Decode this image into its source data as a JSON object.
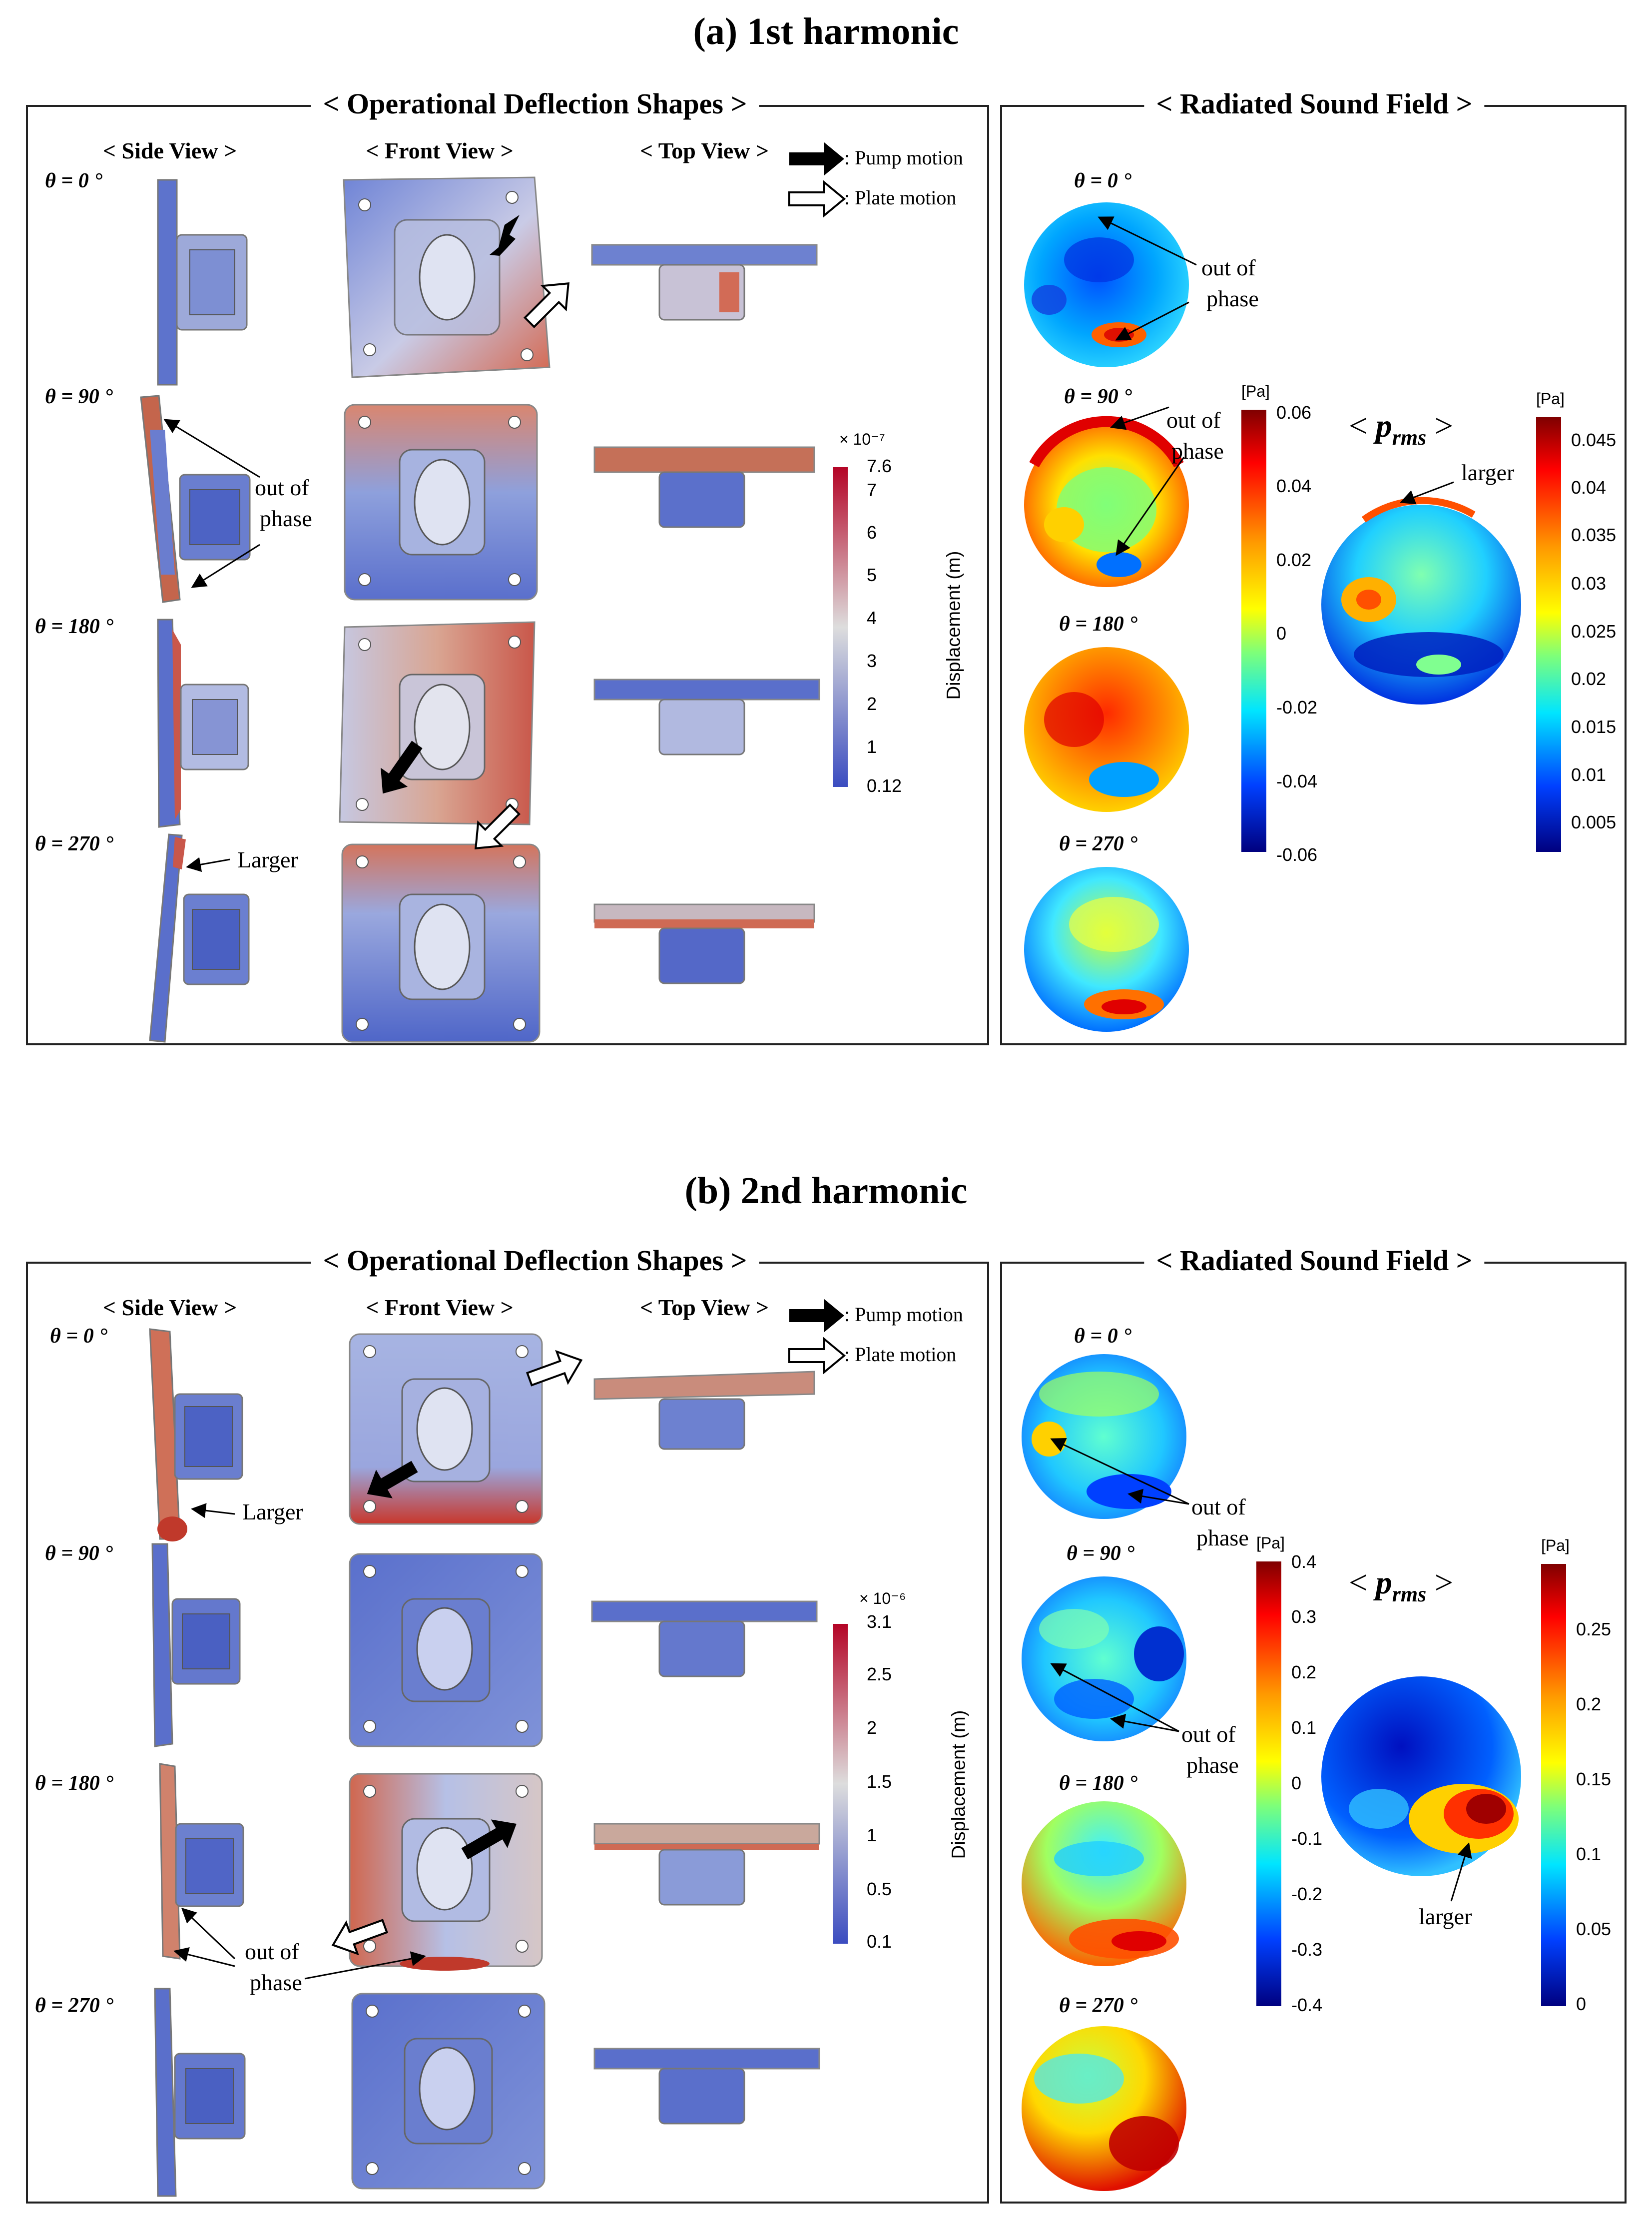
{
  "colors": {
    "jet_dark_blue": "#00007f",
    "jet_blue": "#0050ff",
    "jet_cyan": "#00e5ff",
    "jet_green": "#7dff7a",
    "jet_yellow": "#ffea00",
    "jet_orange": "#ff6a00",
    "jet_red": "#c00000",
    "disp_blue": "#3b4cc0",
    "disp_white": "#dddddd",
    "disp_red": "#b40426"
  },
  "legend": {
    "pump_motion": ": Pump motion",
    "plate_motion": ": Plate motion"
  },
  "sections": [
    {
      "title": "(a) 1st harmonic",
      "ods_title": "< Operational Deflection Shapes >",
      "sound_title": "< Radiated Sound Field >",
      "side_view": "< Side View >",
      "front_view": "< Front View >",
      "top_view": "< Top View >",
      "angles": [
        "θ = 0 °",
        "θ = 90 °",
        "θ = 180 °",
        "θ = 270 °"
      ],
      "annotations": {
        "ods_out_of_phase": [
          "out of",
          "phase"
        ],
        "ods_larger": "Larger",
        "sound_out_of_phase_1": [
          "out of",
          "phase"
        ],
        "sound_out_of_phase_2": [
          "out of",
          "phase"
        ],
        "sound_larger": "larger"
      },
      "displacement_colorbar": {
        "exponent": "× 10⁻⁷",
        "ticks": [
          "7.6",
          "7",
          "6",
          "5",
          "4",
          "3",
          "2",
          "1",
          "0.12"
        ],
        "label": "Displacement (m)"
      },
      "pressure_colorbar": {
        "unit": "[Pa]",
        "ticks": [
          "0.06",
          "0.04",
          "0.02",
          "0",
          "-0.02",
          "-0.04",
          "-0.06"
        ]
      },
      "prms_colorbar": {
        "unit": "[Pa]",
        "ticks": [
          "0.045",
          "0.04",
          "0.035",
          "0.03",
          "0.025",
          "0.02",
          "0.015",
          "0.01",
          "0.005"
        ]
      }
    },
    {
      "title": "(b) 2nd harmonic",
      "ods_title": "< Operational Deflection Shapes >",
      "sound_title": "< Radiated Sound Field >",
      "side_view": "< Side View >",
      "front_view": "< Front View >",
      "top_view": "< Top View >",
      "angles": [
        "θ = 0 °",
        "θ = 90 °",
        "θ = 180 °",
        "θ = 270 °"
      ],
      "annotations": {
        "ods_out_of_phase": [
          "out of",
          "phase"
        ],
        "ods_larger": "Larger",
        "sound_out_of_phase_1": [
          "out of",
          "phase"
        ],
        "sound_out_of_phase_2": [
          "out of",
          "phase"
        ],
        "sound_larger": "larger"
      },
      "displacement_colorbar": {
        "exponent": "× 10⁻⁶",
        "ticks": [
          "3.1",
          "2.5",
          "2",
          "1.5",
          "1",
          "0.5",
          "0.1"
        ],
        "label": "Displacement (m)"
      },
      "pressure_colorbar": {
        "unit": "[Pa]",
        "ticks": [
          "0.4",
          "0.3",
          "0.2",
          "0.1",
          "0",
          "-0.1",
          "-0.2",
          "-0.3",
          "-0.4"
        ]
      },
      "prms_colorbar": {
        "unit": "[Pa]",
        "ticks": [
          "0.25",
          "0.2",
          "0.15",
          "0.1",
          "0.05",
          "0"
        ]
      }
    }
  ],
  "prms_label": {
    "prefix": "< ",
    "p": "p",
    "sub": "rms",
    "suffix": " >"
  }
}
